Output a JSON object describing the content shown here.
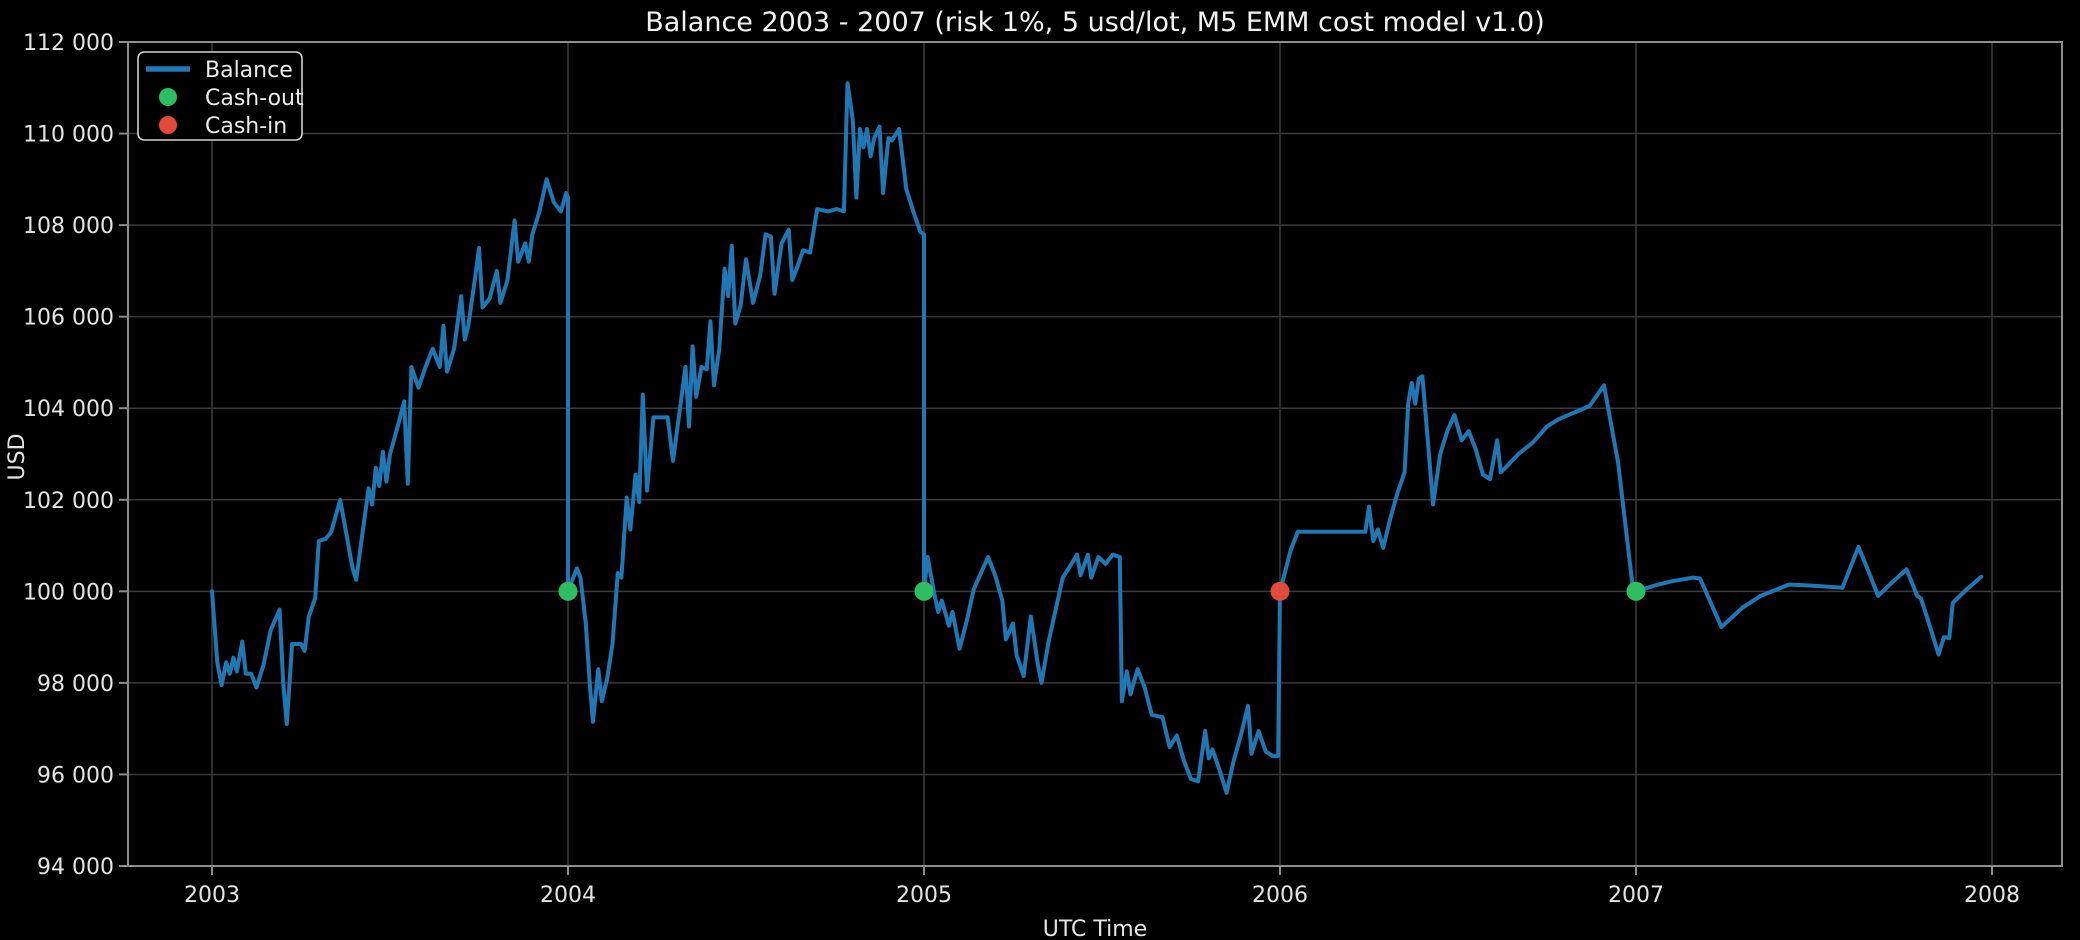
{
  "title": "Balance 2003 - 2007 (risk 1%, 5 usd/lot, M5 EMM cost model v1.0)",
  "axes": {
    "x_label": "UTC Time",
    "y_label": "USD",
    "x_ticks": [
      {
        "value": 2003,
        "label": "2003"
      },
      {
        "value": 2004,
        "label": "2004"
      },
      {
        "value": 2005,
        "label": "2005"
      },
      {
        "value": 2006,
        "label": "2006"
      },
      {
        "value": 2007,
        "label": "2007"
      },
      {
        "value": 2008,
        "label": "2008"
      }
    ],
    "y_ticks": [
      {
        "value": 94000,
        "label": "94 000"
      },
      {
        "value": 96000,
        "label": "96 000"
      },
      {
        "value": 98000,
        "label": "98 000"
      },
      {
        "value": 100000,
        "label": "100 000"
      },
      {
        "value": 102000,
        "label": "102 000"
      },
      {
        "value": 104000,
        "label": "104 000"
      },
      {
        "value": 106000,
        "label": "106 000"
      },
      {
        "value": 108000,
        "label": "108 000"
      },
      {
        "value": 110000,
        "label": "110 000"
      },
      {
        "value": 112000,
        "label": "112 000"
      }
    ]
  },
  "legend": {
    "items": [
      {
        "label": "Balance",
        "marker": "line",
        "color": "#1f77b4"
      },
      {
        "label": "Cash-out",
        "marker": "dot",
        "color": "#2dbe60"
      },
      {
        "label": "Cash-in",
        "marker": "dot",
        "color": "#e24a3c"
      }
    ]
  },
  "colors": {
    "background": "#000000",
    "balance_line": "#1f77b4",
    "cash_out": "#2dbe60",
    "cash_in": "#e24a3c",
    "grid": "#3a3a3a",
    "spine": "#8c8c8c",
    "text": "#e4e4e4",
    "title": "#f2f2f2"
  },
  "chart_data": {
    "type": "line",
    "title": "Balance 2003 - 2007 (risk 1%, 5 usd/lot, M5 EMM cost model v1.0)",
    "xlabel": "UTC Time",
    "ylabel": "USD",
    "xlim": [
      2002.76,
      2008.2
    ],
    "ylim": [
      94000,
      112000
    ],
    "grid": true,
    "legend_position": "upper-left",
    "series": [
      {
        "name": "Balance",
        "color": "#1f77b4",
        "points": [
          [
            2003.0,
            100000
          ],
          [
            2003.015,
            98450
          ],
          [
            2003.027,
            97950
          ],
          [
            2003.04,
            98450
          ],
          [
            2003.05,
            98200
          ],
          [
            2003.06,
            98550
          ],
          [
            2003.07,
            98250
          ],
          [
            2003.085,
            98900
          ],
          [
            2003.095,
            98200
          ],
          [
            2003.11,
            98200
          ],
          [
            2003.125,
            97900
          ],
          [
            2003.145,
            98400
          ],
          [
            2003.165,
            99150
          ],
          [
            2003.19,
            99600
          ],
          [
            2003.2,
            98000
          ],
          [
            2003.21,
            97100
          ],
          [
            2003.225,
            98850
          ],
          [
            2003.25,
            98850
          ],
          [
            2003.26,
            98700
          ],
          [
            2003.272,
            99450
          ],
          [
            2003.29,
            99850
          ],
          [
            2003.3,
            101100
          ],
          [
            2003.32,
            101150
          ],
          [
            2003.335,
            101300
          ],
          [
            2003.36,
            102000
          ],
          [
            2003.395,
            100500
          ],
          [
            2003.405,
            100250
          ],
          [
            2003.425,
            101400
          ],
          [
            2003.44,
            102250
          ],
          [
            2003.45,
            101900
          ],
          [
            2003.46,
            102700
          ],
          [
            2003.47,
            102300
          ],
          [
            2003.48,
            103050
          ],
          [
            2003.49,
            102400
          ],
          [
            2003.5,
            103000
          ],
          [
            2003.52,
            103550
          ],
          [
            2003.54,
            104150
          ],
          [
            2003.55,
            102350
          ],
          [
            2003.56,
            104900
          ],
          [
            2003.58,
            104450
          ],
          [
            2003.6,
            104900
          ],
          [
            2003.62,
            105300
          ],
          [
            2003.64,
            104900
          ],
          [
            2003.65,
            105800
          ],
          [
            2003.66,
            104800
          ],
          [
            2003.68,
            105300
          ],
          [
            2003.7,
            106450
          ],
          [
            2003.71,
            105500
          ],
          [
            2003.72,
            105800
          ],
          [
            2003.74,
            106900
          ],
          [
            2003.75,
            107500
          ],
          [
            2003.76,
            106200
          ],
          [
            2003.78,
            106400
          ],
          [
            2003.8,
            107000
          ],
          [
            2003.81,
            106300
          ],
          [
            2003.83,
            106800
          ],
          [
            2003.85,
            108100
          ],
          [
            2003.86,
            107200
          ],
          [
            2003.88,
            107600
          ],
          [
            2003.89,
            107200
          ],
          [
            2003.9,
            107800
          ],
          [
            2003.92,
            108300
          ],
          [
            2003.94,
            109000
          ],
          [
            2003.96,
            108500
          ],
          [
            2003.98,
            108300
          ],
          [
            2003.995,
            108700
          ],
          [
            2004.0,
            108600
          ],
          [
            2004.0,
            100000
          ],
          [
            2004.025,
            100500
          ],
          [
            2004.035,
            100300
          ],
          [
            2004.05,
            99300
          ],
          [
            2004.06,
            98100
          ],
          [
            2004.07,
            97150
          ],
          [
            2004.085,
            98300
          ],
          [
            2004.095,
            97600
          ],
          [
            2004.11,
            98100
          ],
          [
            2004.125,
            98850
          ],
          [
            2004.14,
            100400
          ],
          [
            2004.15,
            100300
          ],
          [
            2004.165,
            102050
          ],
          [
            2004.175,
            101350
          ],
          [
            2004.19,
            102550
          ],
          [
            2004.2,
            101950
          ],
          [
            2004.21,
            104300
          ],
          [
            2004.222,
            102200
          ],
          [
            2004.24,
            103800
          ],
          [
            2004.28,
            103800
          ],
          [
            2004.295,
            102850
          ],
          [
            2004.33,
            104900
          ],
          [
            2004.34,
            103600
          ],
          [
            2004.35,
            105350
          ],
          [
            2004.36,
            104250
          ],
          [
            2004.375,
            104900
          ],
          [
            2004.39,
            104850
          ],
          [
            2004.4,
            105900
          ],
          [
            2004.41,
            104500
          ],
          [
            2004.425,
            105300
          ],
          [
            2004.44,
            107050
          ],
          [
            2004.45,
            106450
          ],
          [
            2004.46,
            107550
          ],
          [
            2004.47,
            105850
          ],
          [
            2004.485,
            106250
          ],
          [
            2004.5,
            107250
          ],
          [
            2004.52,
            106300
          ],
          [
            2004.54,
            106900
          ],
          [
            2004.555,
            107800
          ],
          [
            2004.57,
            107750
          ],
          [
            2004.58,
            106500
          ],
          [
            2004.6,
            107600
          ],
          [
            2004.62,
            107900
          ],
          [
            2004.63,
            106800
          ],
          [
            2004.645,
            107100
          ],
          [
            2004.66,
            107450
          ],
          [
            2004.68,
            107400
          ],
          [
            2004.7,
            108350
          ],
          [
            2004.73,
            108300
          ],
          [
            2004.755,
            108350
          ],
          [
            2004.775,
            108300
          ],
          [
            2004.785,
            111100
          ],
          [
            2004.8,
            110300
          ],
          [
            2004.81,
            108600
          ],
          [
            2004.82,
            110100
          ],
          [
            2004.83,
            109700
          ],
          [
            2004.84,
            110100
          ],
          [
            2004.85,
            109500
          ],
          [
            2004.86,
            109900
          ],
          [
            2004.875,
            110150
          ],
          [
            2004.885,
            108700
          ],
          [
            2004.9,
            109900
          ],
          [
            2004.91,
            109850
          ],
          [
            2004.93,
            110100
          ],
          [
            2004.95,
            108800
          ],
          [
            2004.97,
            108300
          ],
          [
            2004.99,
            107850
          ],
          [
            2005.0,
            107800
          ],
          [
            2005.0,
            100000
          ],
          [
            2005.01,
            100750
          ],
          [
            2005.03,
            99900
          ],
          [
            2005.04,
            99550
          ],
          [
            2005.05,
            99800
          ],
          [
            2005.07,
            99250
          ],
          [
            2005.08,
            99550
          ],
          [
            2005.1,
            98750
          ],
          [
            2005.12,
            99350
          ],
          [
            2005.14,
            100050
          ],
          [
            2005.16,
            100400
          ],
          [
            2005.18,
            100750
          ],
          [
            2005.2,
            100350
          ],
          [
            2005.22,
            99800
          ],
          [
            2005.23,
            98950
          ],
          [
            2005.25,
            99300
          ],
          [
            2005.26,
            98600
          ],
          [
            2005.28,
            98150
          ],
          [
            2005.3,
            99450
          ],
          [
            2005.32,
            98400
          ],
          [
            2005.33,
            98000
          ],
          [
            2005.35,
            98900
          ],
          [
            2005.37,
            99600
          ],
          [
            2005.39,
            100300
          ],
          [
            2005.41,
            100550
          ],
          [
            2005.43,
            100800
          ],
          [
            2005.44,
            100350
          ],
          [
            2005.46,
            100800
          ],
          [
            2005.47,
            100300
          ],
          [
            2005.49,
            100750
          ],
          [
            2005.51,
            100600
          ],
          [
            2005.53,
            100800
          ],
          [
            2005.55,
            100750
          ],
          [
            2005.556,
            97600
          ],
          [
            2005.57,
            98250
          ],
          [
            2005.58,
            97750
          ],
          [
            2005.6,
            98300
          ],
          [
            2005.62,
            97900
          ],
          [
            2005.64,
            97300
          ],
          [
            2005.67,
            97250
          ],
          [
            2005.69,
            96600
          ],
          [
            2005.71,
            96850
          ],
          [
            2005.73,
            96300
          ],
          [
            2005.75,
            95900
          ],
          [
            2005.77,
            95850
          ],
          [
            2005.79,
            96950
          ],
          [
            2005.8,
            96350
          ],
          [
            2005.81,
            96550
          ],
          [
            2005.83,
            96100
          ],
          [
            2005.85,
            95600
          ],
          [
            2005.87,
            96300
          ],
          [
            2005.89,
            96850
          ],
          [
            2005.91,
            97500
          ],
          [
            2005.92,
            96450
          ],
          [
            2005.94,
            96950
          ],
          [
            2005.96,
            96500
          ],
          [
            2005.98,
            96400
          ],
          [
            2005.995,
            96400
          ],
          [
            2006.0,
            100000
          ],
          [
            2006.01,
            100300
          ],
          [
            2006.03,
            100900
          ],
          [
            2006.05,
            101300
          ],
          [
            2006.12,
            101300
          ],
          [
            2006.2,
            101300
          ],
          [
            2006.24,
            101300
          ],
          [
            2006.25,
            101850
          ],
          [
            2006.262,
            101100
          ],
          [
            2006.275,
            101350
          ],
          [
            2006.29,
            100950
          ],
          [
            2006.31,
            101600
          ],
          [
            2006.33,
            102150
          ],
          [
            2006.35,
            102600
          ],
          [
            2006.36,
            104100
          ],
          [
            2006.37,
            104550
          ],
          [
            2006.38,
            104100
          ],
          [
            2006.39,
            104650
          ],
          [
            2006.4,
            104700
          ],
          [
            2006.42,
            102850
          ],
          [
            2006.43,
            101900
          ],
          [
            2006.45,
            103000
          ],
          [
            2006.47,
            103500
          ],
          [
            2006.49,
            103850
          ],
          [
            2006.51,
            103300
          ],
          [
            2006.53,
            103500
          ],
          [
            2006.55,
            103100
          ],
          [
            2006.57,
            102550
          ],
          [
            2006.59,
            102450
          ],
          [
            2006.61,
            103300
          ],
          [
            2006.62,
            102600
          ],
          [
            2006.64,
            102750
          ],
          [
            2006.67,
            103000
          ],
          [
            2006.71,
            103250
          ],
          [
            2006.75,
            103600
          ],
          [
            2006.78,
            103750
          ],
          [
            2006.81,
            103850
          ],
          [
            2006.84,
            103950
          ],
          [
            2006.87,
            104050
          ],
          [
            2006.91,
            104500
          ],
          [
            2006.95,
            102800
          ],
          [
            2006.99,
            100150
          ],
          [
            2007.0,
            100000
          ],
          [
            2007.05,
            100120
          ],
          [
            2007.1,
            100220
          ],
          [
            2007.16,
            100300
          ],
          [
            2007.18,
            100280
          ],
          [
            2007.24,
            99220
          ],
          [
            2007.3,
            99650
          ],
          [
            2007.35,
            99900
          ],
          [
            2007.43,
            100150
          ],
          [
            2007.5,
            100120
          ],
          [
            2007.58,
            100080
          ],
          [
            2007.625,
            100970
          ],
          [
            2007.66,
            100300
          ],
          [
            2007.68,
            99900
          ],
          [
            2007.72,
            100200
          ],
          [
            2007.76,
            100480
          ],
          [
            2007.79,
            99900
          ],
          [
            2007.8,
            99850
          ],
          [
            2007.815,
            99500
          ],
          [
            2007.85,
            98620
          ],
          [
            2007.865,
            99000
          ],
          [
            2007.88,
            98980
          ],
          [
            2007.89,
            99750
          ],
          [
            2007.93,
            100050
          ],
          [
            2007.97,
            100320
          ]
        ]
      }
    ],
    "events": {
      "cash_out": {
        "label": "Cash-out",
        "color": "#2dbe60",
        "points": [
          [
            2004.0,
            100000
          ],
          [
            2005.0,
            100000
          ],
          [
            2007.0,
            100000
          ]
        ]
      },
      "cash_in": {
        "label": "Cash-in",
        "color": "#e24a3c",
        "points": [
          [
            2006.0,
            100000
          ]
        ]
      }
    }
  }
}
